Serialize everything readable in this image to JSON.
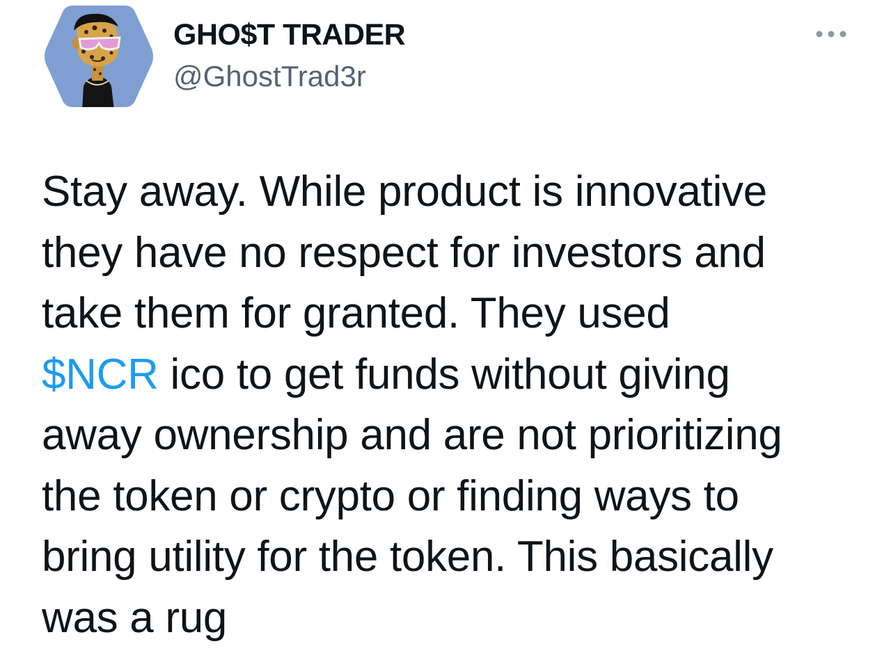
{
  "author": {
    "display_name": "GHO$T TRADER",
    "handle": "@GhostTrad3r",
    "avatar_icon": "hexagon-nft-avatar-icon"
  },
  "more_icon": "more-horizontal-icon",
  "tweet": {
    "line1": "Stay away. While product is innovative",
    "line2": "they have no respect for investors and",
    "line3": "take them for granted. They used",
    "cashtag": "$NCR",
    "line4_rest": " ico to get funds without giving",
    "line5": "away ownership and are not prioritizing",
    "line6": "the token or crypto or finding ways to",
    "line7": "bring utility for the token. This basically",
    "line8": "was a rug"
  },
  "colors": {
    "text": "#0f1419",
    "secondary": "#536471",
    "link": "#1d9bf0",
    "avatar_bg": "#7f9fd2"
  }
}
